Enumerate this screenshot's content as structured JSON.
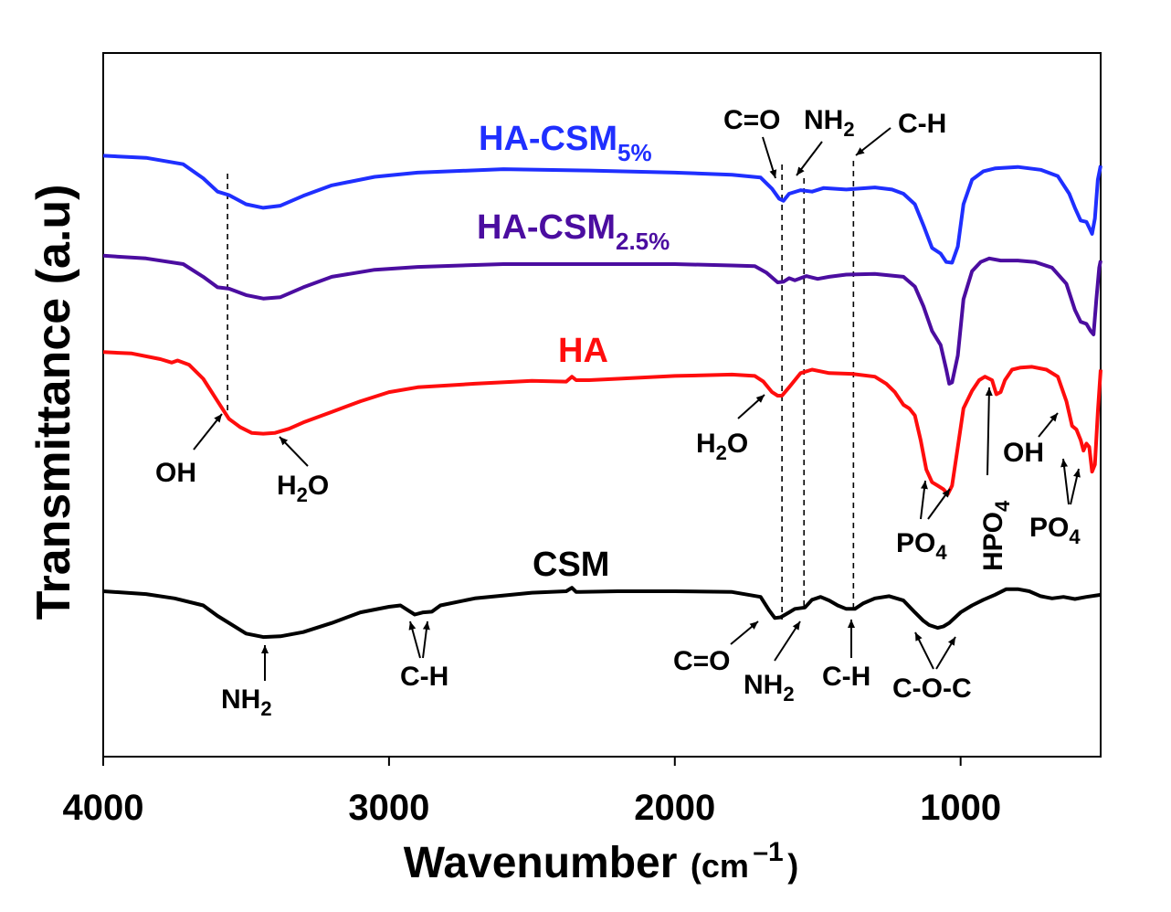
{
  "chart_data": {
    "type": "line",
    "title": "",
    "xlabel_main": "Wavenumber",
    "xlabel_unit_open": "(cm",
    "xlabel_unit_exp": "–1",
    "xlabel_unit_close": ")",
    "ylabel": "Transmittance (a.u)",
    "xlim": [
      4000,
      510
    ],
    "x_reversed": true,
    "ylim": [
      0,
      100
    ],
    "xticks": [
      4000,
      3000,
      2000,
      1000
    ],
    "xtick_labels": [
      "4000",
      "3000",
      "2000",
      "1000"
    ],
    "grid": false,
    "series": [
      {
        "name": "HA-CSM5%",
        "label_main": "HA-CSM",
        "label_sub": "5%",
        "color": "#1f2fff",
        "points": [
          [
            4000,
            85.4
          ],
          [
            3850,
            85.1
          ],
          [
            3720,
            84.2
          ],
          [
            3650,
            82.2
          ],
          [
            3600,
            80.3
          ],
          [
            3560,
            79.8
          ],
          [
            3500,
            78.5
          ],
          [
            3440,
            78.0
          ],
          [
            3380,
            78.3
          ],
          [
            3300,
            79.7
          ],
          [
            3200,
            81.2
          ],
          [
            3050,
            82.4
          ],
          [
            2900,
            83.0
          ],
          [
            2600,
            83.5
          ],
          [
            2300,
            83.3
          ],
          [
            2000,
            83.0
          ],
          [
            1800,
            82.7
          ],
          [
            1700,
            82.3
          ],
          [
            1660,
            80.7
          ],
          [
            1635,
            79.3
          ],
          [
            1620,
            79.0
          ],
          [
            1600,
            80.0
          ],
          [
            1560,
            80.5
          ],
          [
            1520,
            80.3
          ],
          [
            1480,
            80.8
          ],
          [
            1400,
            80.6
          ],
          [
            1300,
            80.9
          ],
          [
            1240,
            80.6
          ],
          [
            1200,
            80.0
          ],
          [
            1160,
            78.5
          ],
          [
            1130,
            75.5
          ],
          [
            1100,
            72.3
          ],
          [
            1070,
            71.5
          ],
          [
            1050,
            70.3
          ],
          [
            1030,
            70.2
          ],
          [
            1010,
            72.5
          ],
          [
            990,
            78.5
          ],
          [
            960,
            82.0
          ],
          [
            920,
            83.2
          ],
          [
            880,
            83.6
          ],
          [
            800,
            83.8
          ],
          [
            720,
            83.4
          ],
          [
            660,
            82.5
          ],
          [
            620,
            80.0
          ],
          [
            600,
            78.0
          ],
          [
            580,
            76.2
          ],
          [
            560,
            76.0
          ],
          [
            548,
            75.0
          ],
          [
            540,
            74.3
          ],
          [
            530,
            76.5
          ],
          [
            520,
            82.0
          ],
          [
            510,
            84.0
          ]
        ]
      },
      {
        "name": "HA-CSM2.5%",
        "label_main": "HA-CSM",
        "label_sub": "2.5%",
        "color": "#4b0da0",
        "points": [
          [
            4000,
            71.2
          ],
          [
            3850,
            70.8
          ],
          [
            3720,
            70.0
          ],
          [
            3650,
            68.2
          ],
          [
            3600,
            66.7
          ],
          [
            3560,
            66.5
          ],
          [
            3500,
            65.6
          ],
          [
            3440,
            65.1
          ],
          [
            3380,
            65.3
          ],
          [
            3300,
            66.7
          ],
          [
            3200,
            68.2
          ],
          [
            3050,
            69.2
          ],
          [
            2900,
            69.6
          ],
          [
            2600,
            70.0
          ],
          [
            2300,
            70.0
          ],
          [
            2000,
            70.0
          ],
          [
            1800,
            69.8
          ],
          [
            1720,
            69.7
          ],
          [
            1680,
            68.8
          ],
          [
            1640,
            67.4
          ],
          [
            1620,
            67.5
          ],
          [
            1600,
            68.0
          ],
          [
            1580,
            67.7
          ],
          [
            1540,
            68.3
          ],
          [
            1500,
            67.9
          ],
          [
            1460,
            68.2
          ],
          [
            1400,
            68.5
          ],
          [
            1300,
            68.6
          ],
          [
            1200,
            68.2
          ],
          [
            1160,
            66.8
          ],
          [
            1130,
            64.0
          ],
          [
            1100,
            60.5
          ],
          [
            1070,
            58.5
          ],
          [
            1050,
            55.0
          ],
          [
            1040,
            53.0
          ],
          [
            1030,
            53.2
          ],
          [
            1010,
            57.0
          ],
          [
            990,
            65.0
          ],
          [
            960,
            69.0
          ],
          [
            930,
            70.3
          ],
          [
            900,
            70.8
          ],
          [
            860,
            70.5
          ],
          [
            800,
            70.5
          ],
          [
            740,
            70.3
          ],
          [
            680,
            69.5
          ],
          [
            630,
            67.2
          ],
          [
            600,
            63.5
          ],
          [
            580,
            61.8
          ],
          [
            560,
            61.5
          ],
          [
            545,
            60.5
          ],
          [
            535,
            60.0
          ],
          [
            525,
            65.0
          ],
          [
            515,
            69.5
          ],
          [
            510,
            70.5
          ]
        ]
      },
      {
        "name": "HA",
        "label_main": "HA",
        "label_sub": "",
        "color": "#ff0d0d",
        "points": [
          [
            4000,
            57.5
          ],
          [
            3900,
            57.3
          ],
          [
            3800,
            56.5
          ],
          [
            3760,
            56.0
          ],
          [
            3740,
            56.3
          ],
          [
            3700,
            55.7
          ],
          [
            3650,
            53.7
          ],
          [
            3600,
            50.5
          ],
          [
            3560,
            48.0
          ],
          [
            3520,
            46.8
          ],
          [
            3480,
            46.0
          ],
          [
            3440,
            45.9
          ],
          [
            3400,
            46.0
          ],
          [
            3350,
            46.6
          ],
          [
            3300,
            47.5
          ],
          [
            3200,
            49.0
          ],
          [
            3100,
            50.5
          ],
          [
            3000,
            51.8
          ],
          [
            2900,
            52.5
          ],
          [
            2700,
            53.0
          ],
          [
            2500,
            53.4
          ],
          [
            2380,
            53.3
          ],
          [
            2360,
            54.0
          ],
          [
            2345,
            53.5
          ],
          [
            2300,
            53.5
          ],
          [
            2200,
            53.7
          ],
          [
            2000,
            54.1
          ],
          [
            1800,
            54.3
          ],
          [
            1720,
            54.1
          ],
          [
            1690,
            53.3
          ],
          [
            1660,
            51.8
          ],
          [
            1640,
            51.3
          ],
          [
            1625,
            51.3
          ],
          [
            1600,
            52.5
          ],
          [
            1560,
            54.5
          ],
          [
            1520,
            55.0
          ],
          [
            1460,
            54.5
          ],
          [
            1380,
            54.4
          ],
          [
            1300,
            54.0
          ],
          [
            1260,
            53.0
          ],
          [
            1230,
            51.8
          ],
          [
            1200,
            50.0
          ],
          [
            1180,
            49.5
          ],
          [
            1160,
            48.5
          ],
          [
            1140,
            45.0
          ],
          [
            1120,
            40.8
          ],
          [
            1100,
            39.0
          ],
          [
            1080,
            38.5
          ],
          [
            1060,
            38.0
          ],
          [
            1045,
            37.3
          ],
          [
            1030,
            38.5
          ],
          [
            1010,
            44.0
          ],
          [
            990,
            49.5
          ],
          [
            960,
            52.0
          ],
          [
            935,
            53.5
          ],
          [
            915,
            54.0
          ],
          [
            890,
            53.5
          ],
          [
            875,
            51.5
          ],
          [
            860,
            51.8
          ],
          [
            845,
            53.5
          ],
          [
            820,
            55.0
          ],
          [
            790,
            55.3
          ],
          [
            750,
            55.4
          ],
          [
            700,
            55.0
          ],
          [
            660,
            54.0
          ],
          [
            630,
            50.5
          ],
          [
            610,
            47.0
          ],
          [
            595,
            46.5
          ],
          [
            580,
            45.0
          ],
          [
            570,
            43.5
          ],
          [
            560,
            44.5
          ],
          [
            550,
            44.0
          ],
          [
            540,
            40.5
          ],
          [
            530,
            41.5
          ],
          [
            520,
            49.0
          ],
          [
            510,
            55.0
          ]
        ]
      },
      {
        "name": "CSM",
        "label_main": "CSM",
        "label_sub": "",
        "color": "#000000",
        "points": [
          [
            4000,
            23.5
          ],
          [
            3850,
            23.1
          ],
          [
            3750,
            22.5
          ],
          [
            3650,
            21.5
          ],
          [
            3600,
            20.0
          ],
          [
            3500,
            17.5
          ],
          [
            3440,
            17.0
          ],
          [
            3380,
            17.1
          ],
          [
            3300,
            17.7
          ],
          [
            3200,
            19.0
          ],
          [
            3100,
            20.5
          ],
          [
            3000,
            21.3
          ],
          [
            2960,
            21.5
          ],
          [
            2930,
            20.7
          ],
          [
            2910,
            20.2
          ],
          [
            2880,
            20.5
          ],
          [
            2850,
            20.6
          ],
          [
            2820,
            21.5
          ],
          [
            2700,
            22.5
          ],
          [
            2500,
            23.3
          ],
          [
            2380,
            23.5
          ],
          [
            2360,
            24.0
          ],
          [
            2345,
            23.4
          ],
          [
            2200,
            23.5
          ],
          [
            2000,
            23.5
          ],
          [
            1800,
            23.4
          ],
          [
            1700,
            22.7
          ],
          [
            1670,
            20.8
          ],
          [
            1650,
            19.7
          ],
          [
            1630,
            19.8
          ],
          [
            1600,
            20.5
          ],
          [
            1580,
            21.0
          ],
          [
            1545,
            21.2
          ],
          [
            1520,
            22.3
          ],
          [
            1490,
            22.7
          ],
          [
            1460,
            22.2
          ],
          [
            1430,
            21.5
          ],
          [
            1400,
            21.0
          ],
          [
            1370,
            21.0
          ],
          [
            1340,
            21.8
          ],
          [
            1300,
            22.5
          ],
          [
            1250,
            22.8
          ],
          [
            1200,
            22.2
          ],
          [
            1160,
            20.5
          ],
          [
            1130,
            19.3
          ],
          [
            1110,
            18.7
          ],
          [
            1080,
            18.3
          ],
          [
            1060,
            18.5
          ],
          [
            1040,
            19.0
          ],
          [
            1000,
            20.5
          ],
          [
            960,
            21.5
          ],
          [
            920,
            22.3
          ],
          [
            880,
            23.0
          ],
          [
            840,
            23.8
          ],
          [
            800,
            23.8
          ],
          [
            760,
            23.5
          ],
          [
            720,
            22.8
          ],
          [
            680,
            22.5
          ],
          [
            640,
            22.7
          ],
          [
            600,
            22.4
          ],
          [
            560,
            22.7
          ],
          [
            510,
            23.0
          ]
        ]
      }
    ],
    "annotations": {
      "ha_csm5": {
        "c_o": "C=O",
        "nh2": "NH",
        "nh2_sub": "2",
        "ch": "C-H"
      },
      "ha": {
        "oh_left": "OH",
        "h2o_left_main": "H",
        "h2o_left_sub": "2",
        "h2o_left_end": "O",
        "h2o_mid_main": "H",
        "h2o_mid_sub": "2",
        "h2o_mid_end": "O",
        "po4_left_main": "PO",
        "po4_left_sub": "4",
        "hpo4_main": "HPO",
        "hpo4_sub": "4",
        "oh_right": "OH",
        "po4_right_main": "PO",
        "po4_right_sub": "4"
      },
      "csm": {
        "nh2_main": "NH",
        "nh2_sub": "2",
        "ch_left": "C-H",
        "c_o": "C=O",
        "nh2_mid_main": "NH",
        "nh2_mid_sub": "2",
        "ch_right": "C-H",
        "coc": "C-O-C"
      }
    },
    "dashed_marker_wavenumbers": [
      3565,
      1625,
      1548,
      1375
    ]
  }
}
